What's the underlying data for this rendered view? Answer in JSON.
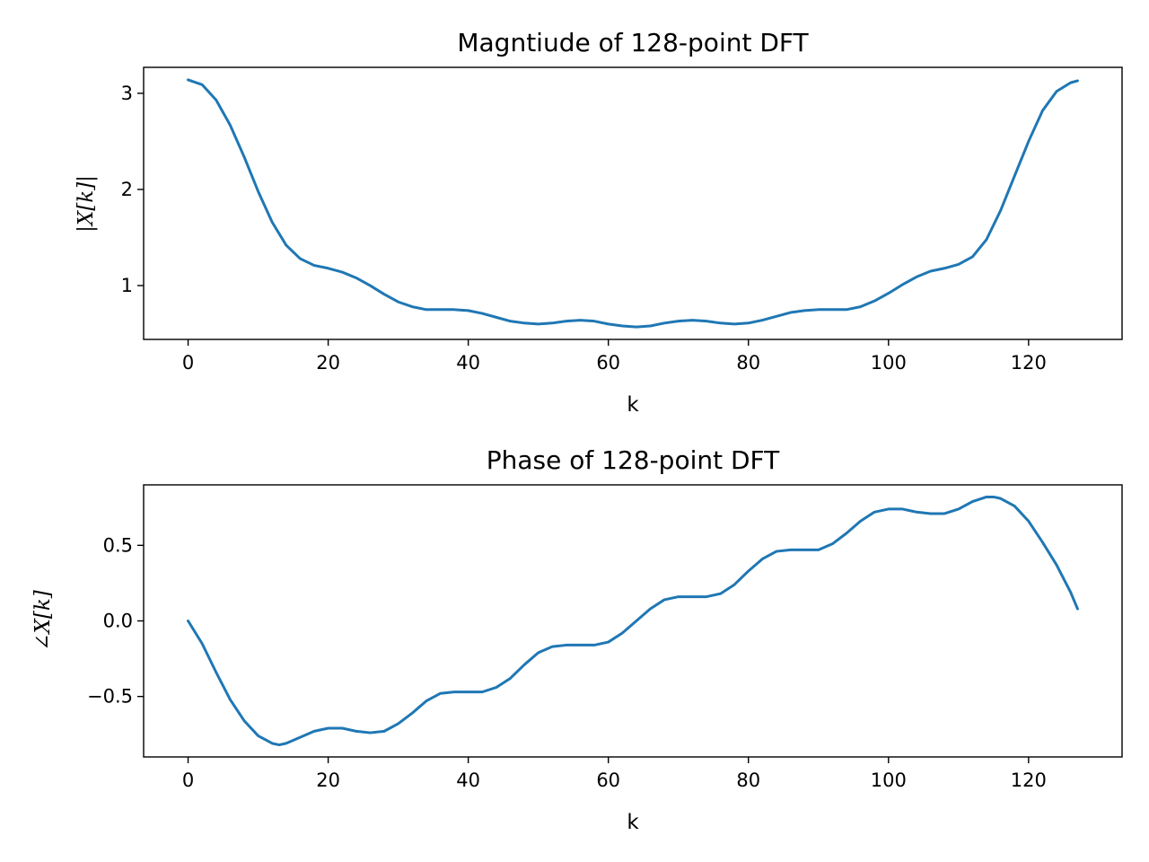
{
  "chart_data": [
    {
      "type": "line",
      "title": "Magntiude of 128-point DFT",
      "xlabel": "k",
      "ylabel": "|X[k]|",
      "xlim": [
        -6.35,
        133.35
      ],
      "ylim": [
        0.44,
        3.27
      ],
      "x_ticks": [
        0,
        20,
        40,
        60,
        80,
        100,
        120
      ],
      "y_ticks": [
        1,
        2,
        3
      ],
      "x_tick_labels": [
        "0",
        "20",
        "40",
        "60",
        "80",
        "100",
        "120"
      ],
      "y_tick_labels": [
        "1",
        "2",
        "3"
      ],
      "grid": false,
      "color": "#1f77b4",
      "series": [
        {
          "x": [
            0,
            2,
            4,
            6,
            8,
            10,
            12,
            14,
            16,
            18,
            20,
            22,
            24,
            26,
            28,
            30,
            32,
            34,
            36,
            38,
            40,
            42,
            44,
            46,
            48,
            50,
            52,
            54,
            56,
            58,
            60,
            62,
            64,
            66,
            68,
            70,
            72,
            74,
            76,
            78,
            80,
            82,
            84,
            86,
            88,
            90,
            92,
            94,
            96,
            98,
            100,
            102,
            104,
            106,
            108,
            110,
            112,
            114,
            116,
            118,
            120,
            122,
            124,
            126,
            127
          ],
          "values": [
            3.14,
            3.09,
            2.93,
            2.67,
            2.34,
            1.98,
            1.66,
            1.42,
            1.28,
            1.21,
            1.18,
            1.14,
            1.08,
            1.0,
            0.91,
            0.83,
            0.78,
            0.75,
            0.75,
            0.75,
            0.74,
            0.71,
            0.67,
            0.63,
            0.61,
            0.6,
            0.61,
            0.63,
            0.64,
            0.63,
            0.6,
            0.58,
            0.57,
            0.58,
            0.61,
            0.63,
            0.64,
            0.63,
            0.61,
            0.6,
            0.61,
            0.64,
            0.68,
            0.72,
            0.74,
            0.75,
            0.75,
            0.75,
            0.78,
            0.84,
            0.92,
            1.01,
            1.09,
            1.15,
            1.18,
            1.22,
            1.3,
            1.48,
            1.78,
            2.14,
            2.5,
            2.82,
            3.02,
            3.11,
            3.13
          ]
        }
      ]
    },
    {
      "type": "line",
      "title": "Phase of 128-point DFT",
      "xlabel": "k",
      "ylabel": "∠X[k]",
      "xlim": [
        -6.35,
        133.35
      ],
      "ylim": [
        -0.9,
        0.9
      ],
      "x_ticks": [
        0,
        20,
        40,
        60,
        80,
        100,
        120
      ],
      "y_ticks": [
        -0.5,
        0.0,
        0.5
      ],
      "x_tick_labels": [
        "0",
        "20",
        "40",
        "60",
        "80",
        "100",
        "120"
      ],
      "y_tick_labels": [
        "−0.5",
        "0.0",
        "0.5"
      ],
      "grid": false,
      "color": "#1f77b4",
      "series": [
        {
          "x": [
            0,
            2,
            4,
            6,
            8,
            10,
            12,
            13,
            14,
            16,
            18,
            20,
            22,
            24,
            26,
            28,
            30,
            32,
            34,
            36,
            38,
            40,
            42,
            44,
            46,
            48,
            50,
            52,
            54,
            56,
            58,
            60,
            62,
            64,
            66,
            68,
            70,
            72,
            74,
            76,
            78,
            80,
            82,
            84,
            86,
            88,
            90,
            92,
            94,
            96,
            98,
            100,
            102,
            104,
            106,
            108,
            110,
            112,
            114,
            115,
            116,
            118,
            120,
            122,
            124,
            126,
            127
          ],
          "values": [
            0.0,
            -0.15,
            -0.34,
            -0.52,
            -0.66,
            -0.76,
            -0.81,
            -0.82,
            -0.81,
            -0.77,
            -0.73,
            -0.71,
            -0.71,
            -0.73,
            -0.74,
            -0.73,
            -0.68,
            -0.61,
            -0.53,
            -0.48,
            -0.47,
            -0.47,
            -0.47,
            -0.44,
            -0.38,
            -0.29,
            -0.21,
            -0.17,
            -0.16,
            -0.16,
            -0.16,
            -0.14,
            -0.08,
            0.0,
            0.08,
            0.14,
            0.16,
            0.16,
            0.16,
            0.18,
            0.24,
            0.33,
            0.41,
            0.46,
            0.47,
            0.47,
            0.47,
            0.51,
            0.58,
            0.66,
            0.72,
            0.74,
            0.74,
            0.72,
            0.71,
            0.71,
            0.74,
            0.79,
            0.82,
            0.82,
            0.81,
            0.76,
            0.66,
            0.52,
            0.37,
            0.19,
            0.08
          ]
        }
      ]
    }
  ]
}
